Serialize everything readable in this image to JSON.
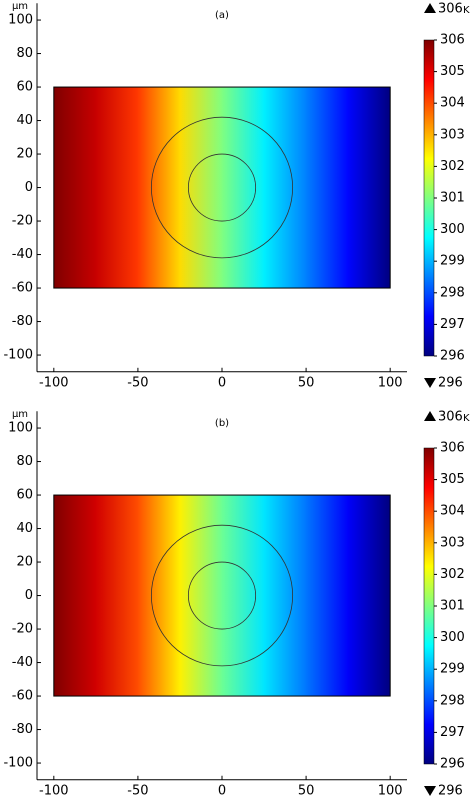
{
  "chart_data": [
    {
      "type": "heatmap",
      "title": "(a)",
      "y_unit": "μm",
      "xlim": [
        -110,
        110
      ],
      "ylim": [
        -110,
        110
      ],
      "xticks": [
        -100,
        -50,
        0,
        50,
        100
      ],
      "yticks": [
        -100,
        -80,
        -60,
        -40,
        -20,
        0,
        20,
        40,
        60,
        80,
        100
      ],
      "domain": {
        "x": [
          -100,
          100
        ],
        "y": [
          -60,
          60
        ]
      },
      "circles": [
        {
          "cx": 0,
          "cy": 0,
          "r": 20
        },
        {
          "cx": 0,
          "cy": 0,
          "r": 42
        }
      ],
      "x": [
        -100,
        -75,
        -50,
        -25,
        0,
        25,
        50,
        75,
        100
      ],
      "values": [
        306,
        305.3,
        304.2,
        302.6,
        301,
        299.6,
        298.5,
        297.3,
        296
      ],
      "colormap": [
        "#7f0000",
        "#ff0000",
        "#ff8000",
        "#ffff00",
        "#80ff80",
        "#00ffff",
        "#0080ff",
        "#0000ff",
        "#00007f"
      ],
      "colorbar": {
        "lim": [
          296,
          306
        ],
        "ticks": [
          296,
          297,
          298,
          299,
          300,
          301,
          302,
          303,
          304,
          305,
          306
        ],
        "unit": "K",
        "max_label": 306,
        "min_label": 296
      }
    },
    {
      "type": "heatmap",
      "title": "(b)",
      "y_unit": "μm",
      "xlim": [
        -110,
        110
      ],
      "ylim": [
        -110,
        110
      ],
      "xticks": [
        -100,
        -50,
        0,
        50,
        100
      ],
      "yticks": [
        -100,
        -80,
        -60,
        -40,
        -20,
        0,
        20,
        40,
        60,
        80,
        100
      ],
      "domain": {
        "x": [
          -100,
          100
        ],
        "y": [
          -60,
          60
        ]
      },
      "circles": [
        {
          "cx": 0,
          "cy": 0,
          "r": 20
        },
        {
          "cx": 0,
          "cy": 0,
          "r": 42
        }
      ],
      "x": [
        -100,
        -75,
        -50,
        -25,
        0,
        25,
        50,
        75,
        100
      ],
      "values": [
        306,
        305.2,
        304,
        302.4,
        300.8,
        299.5,
        298.4,
        297.2,
        296
      ],
      "colormap": [
        "#7f0000",
        "#ff0000",
        "#ff8000",
        "#ffff00",
        "#80ff80",
        "#00ffff",
        "#0080ff",
        "#0000ff",
        "#00007f"
      ],
      "colorbar": {
        "lim": [
          296,
          306
        ],
        "ticks": [
          296,
          297,
          298,
          299,
          300,
          301,
          302,
          303,
          304,
          305,
          306
        ],
        "unit": "K",
        "max_label": 306,
        "min_label": 296
      }
    }
  ]
}
